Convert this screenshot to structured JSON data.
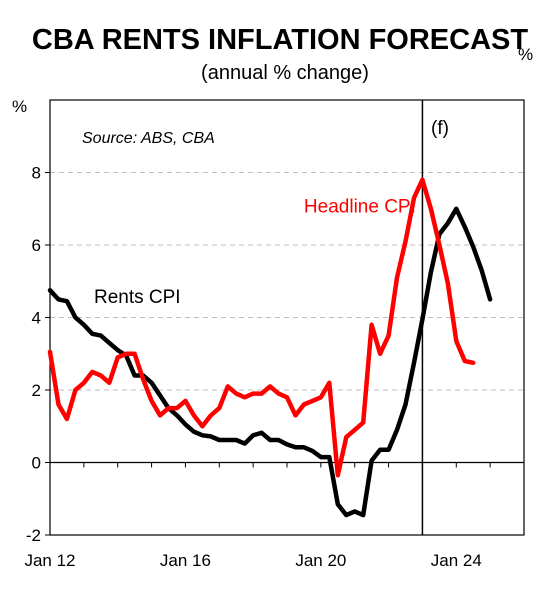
{
  "chart_data": {
    "type": "line",
    "title": "CBA RENTS INFLATION FORECAST",
    "subtitle": "(annual % change)",
    "ylabel_left": "%",
    "ylabel_right": "%",
    "source": "Source: ABS, CBA",
    "forecast_marker": "(f)",
    "forecast_start": 2023.0,
    "xlim": [
      2012.0,
      2026.0
    ],
    "ylim": [
      -2,
      10
    ],
    "yticks": [
      -2,
      0,
      2,
      4,
      6,
      8
    ],
    "xticks": [
      {
        "label": "Jan 12",
        "x": 2012.0
      },
      {
        "label": "Jan 16",
        "x": 2016.0
      },
      {
        "label": "Jan 20",
        "x": 2020.0
      },
      {
        "label": "Jan 24",
        "x": 2024.0
      }
    ],
    "grid": true,
    "colors": {
      "rents": "#000000",
      "headline": "#ff0000"
    },
    "series": [
      {
        "name": "Rents CPI",
        "key": "rents",
        "annotation_x": 2013.3,
        "annotation_y": 4.4,
        "points": [
          [
            2012.0,
            4.75
          ],
          [
            2012.25,
            4.5
          ],
          [
            2012.5,
            4.45
          ],
          [
            2012.75,
            4.0
          ],
          [
            2013.0,
            3.8
          ],
          [
            2013.25,
            3.55
          ],
          [
            2013.5,
            3.5
          ],
          [
            2013.75,
            3.3
          ],
          [
            2014.0,
            3.1
          ],
          [
            2014.25,
            2.95
          ],
          [
            2014.5,
            2.4
          ],
          [
            2014.75,
            2.4
          ],
          [
            2015.0,
            2.2
          ],
          [
            2015.25,
            1.85
          ],
          [
            2015.5,
            1.5
          ],
          [
            2015.75,
            1.3
          ],
          [
            2016.0,
            1.05
          ],
          [
            2016.25,
            0.85
          ],
          [
            2016.5,
            0.75
          ],
          [
            2016.75,
            0.72
          ],
          [
            2017.0,
            0.62
          ],
          [
            2017.25,
            0.62
          ],
          [
            2017.5,
            0.62
          ],
          [
            2017.75,
            0.52
          ],
          [
            2018.0,
            0.75
          ],
          [
            2018.25,
            0.82
          ],
          [
            2018.5,
            0.62
          ],
          [
            2018.75,
            0.62
          ],
          [
            2019.0,
            0.5
          ],
          [
            2019.25,
            0.42
          ],
          [
            2019.5,
            0.42
          ],
          [
            2019.75,
            0.32
          ],
          [
            2020.0,
            0.15
          ],
          [
            2020.25,
            0.15
          ],
          [
            2020.5,
            -1.15
          ],
          [
            2020.75,
            -1.45
          ],
          [
            2021.0,
            -1.35
          ],
          [
            2021.25,
            -1.45
          ],
          [
            2021.5,
            0.05
          ],
          [
            2021.75,
            0.35
          ],
          [
            2022.0,
            0.35
          ],
          [
            2022.25,
            0.9
          ],
          [
            2022.5,
            1.6
          ],
          [
            2022.75,
            2.75
          ],
          [
            2023.0,
            3.95
          ],
          [
            2023.25,
            5.25
          ],
          [
            2023.5,
            6.3
          ],
          [
            2023.75,
            6.6
          ],
          [
            2024.0,
            7.0
          ],
          [
            2024.25,
            6.5
          ],
          [
            2024.5,
            5.95
          ],
          [
            2024.75,
            5.3
          ],
          [
            2025.0,
            4.5
          ]
        ]
      },
      {
        "name": "Headline CPI",
        "key": "headline",
        "annotation_x": 2019.5,
        "annotation_y": 6.9,
        "points": [
          [
            2012.0,
            3.05
          ],
          [
            2012.25,
            1.6
          ],
          [
            2012.5,
            1.2
          ],
          [
            2012.75,
            2.0
          ],
          [
            2013.0,
            2.2
          ],
          [
            2013.25,
            2.5
          ],
          [
            2013.5,
            2.4
          ],
          [
            2013.75,
            2.2
          ],
          [
            2014.0,
            2.9
          ],
          [
            2014.25,
            3.0
          ],
          [
            2014.5,
            3.0
          ],
          [
            2014.75,
            2.3
          ],
          [
            2015.0,
            1.7
          ],
          [
            2015.25,
            1.3
          ],
          [
            2015.5,
            1.5
          ],
          [
            2015.75,
            1.5
          ],
          [
            2016.0,
            1.7
          ],
          [
            2016.25,
            1.3
          ],
          [
            2016.5,
            1.0
          ],
          [
            2016.75,
            1.3
          ],
          [
            2017.0,
            1.5
          ],
          [
            2017.25,
            2.1
          ],
          [
            2017.5,
            1.9
          ],
          [
            2017.75,
            1.8
          ],
          [
            2018.0,
            1.9
          ],
          [
            2018.25,
            1.9
          ],
          [
            2018.5,
            2.1
          ],
          [
            2018.75,
            1.9
          ],
          [
            2019.0,
            1.8
          ],
          [
            2019.25,
            1.3
          ],
          [
            2019.5,
            1.6
          ],
          [
            2019.75,
            1.7
          ],
          [
            2020.0,
            1.8
          ],
          [
            2020.25,
            2.2
          ],
          [
            2020.5,
            -0.35
          ],
          [
            2020.75,
            0.7
          ],
          [
            2021.0,
            0.9
          ],
          [
            2021.25,
            1.1
          ],
          [
            2021.5,
            3.8
          ],
          [
            2021.75,
            3.0
          ],
          [
            2022.0,
            3.5
          ],
          [
            2022.25,
            5.1
          ],
          [
            2022.5,
            6.1
          ],
          [
            2022.75,
            7.3
          ],
          [
            2023.0,
            7.8
          ],
          [
            2023.25,
            7.0
          ],
          [
            2023.5,
            6.0
          ],
          [
            2023.75,
            4.95
          ],
          [
            2024.0,
            3.35
          ],
          [
            2024.25,
            2.8
          ],
          [
            2024.5,
            2.75
          ]
        ]
      }
    ]
  }
}
